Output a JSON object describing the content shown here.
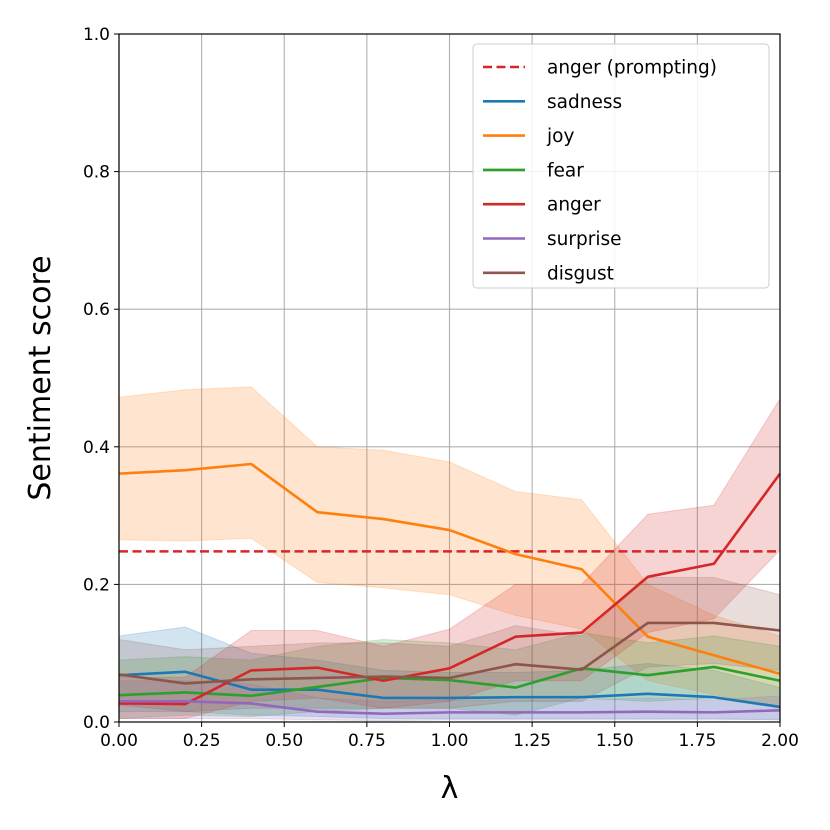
{
  "chart_data": {
    "type": "line",
    "title": "",
    "xlabel": "λ",
    "ylabel": "Sentiment score",
    "xlim": [
      0,
      2
    ],
    "ylim": [
      0,
      1
    ],
    "x_ticks": [
      "0.00",
      "0.25",
      "0.50",
      "0.75",
      "1.00",
      "1.25",
      "1.50",
      "1.75",
      "2.00"
    ],
    "y_ticks": [
      "0.0",
      "0.2",
      "0.4",
      "0.6",
      "0.8",
      "1.0"
    ],
    "grid": true,
    "legend_position": "top-right",
    "x": [
      0.0,
      0.2,
      0.4,
      0.6,
      0.8,
      1.0,
      1.2,
      1.4,
      1.6,
      1.8,
      2.0
    ],
    "reference_line": {
      "name": "anger (prompting)",
      "value": 0.248,
      "color": "#d62728",
      "style": "dashed"
    },
    "series": [
      {
        "name": "sadness",
        "color": "#1f77b4",
        "values": [
          0.068,
          0.073,
          0.047,
          0.047,
          0.035,
          0.035,
          0.036,
          0.036,
          0.041,
          0.036,
          0.022
        ],
        "lower": [
          0.015,
          0.015,
          0.01,
          0.008,
          0.005,
          0.005,
          0.005,
          0.005,
          0.005,
          0.005,
          0.003
        ],
        "upper": [
          0.125,
          0.138,
          0.1,
          0.09,
          0.075,
          0.072,
          0.072,
          0.075,
          0.085,
          0.075,
          0.05
        ]
      },
      {
        "name": "joy",
        "color": "#ff7f0e",
        "values": [
          0.361,
          0.366,
          0.375,
          0.305,
          0.295,
          0.279,
          0.244,
          0.222,
          0.124,
          0.097,
          0.07
        ],
        "lower": [
          0.265,
          0.263,
          0.267,
          0.203,
          0.195,
          0.185,
          0.155,
          0.135,
          0.06,
          0.04,
          0.02
        ],
        "upper": [
          0.472,
          0.483,
          0.487,
          0.4,
          0.395,
          0.378,
          0.335,
          0.323,
          0.2,
          0.155,
          0.125
        ]
      },
      {
        "name": "fear",
        "color": "#2ca02c",
        "values": [
          0.039,
          0.043,
          0.038,
          0.051,
          0.064,
          0.061,
          0.05,
          0.078,
          0.068,
          0.08,
          0.06
        ],
        "lower": [
          0.005,
          0.01,
          0.008,
          0.015,
          0.02,
          0.02,
          0.01,
          0.035,
          0.03,
          0.035,
          0.02
        ],
        "upper": [
          0.09,
          0.095,
          0.09,
          0.11,
          0.12,
          0.115,
          0.105,
          0.13,
          0.115,
          0.125,
          0.11
        ]
      },
      {
        "name": "anger",
        "color": "#d62728",
        "values": [
          0.027,
          0.026,
          0.075,
          0.079,
          0.06,
          0.078,
          0.124,
          0.13,
          0.211,
          0.23,
          0.361
        ],
        "lower": [
          0.005,
          0.005,
          0.03,
          0.035,
          0.02,
          0.03,
          0.06,
          0.06,
          0.13,
          0.15,
          0.25
        ],
        "upper": [
          0.065,
          0.065,
          0.133,
          0.133,
          0.11,
          0.135,
          0.2,
          0.2,
          0.302,
          0.315,
          0.47
        ]
      },
      {
        "name": "surprise",
        "color": "#9467bd",
        "values": [
          0.03,
          0.03,
          0.027,
          0.015,
          0.012,
          0.014,
          0.014,
          0.014,
          0.015,
          0.014,
          0.017
        ],
        "lower": [
          0.005,
          0.005,
          0.005,
          0.003,
          0.002,
          0.003,
          0.003,
          0.003,
          0.003,
          0.003,
          0.004
        ],
        "upper": [
          0.06,
          0.06,
          0.055,
          0.035,
          0.03,
          0.032,
          0.032,
          0.032,
          0.035,
          0.032,
          0.038
        ]
      },
      {
        "name": "disgust",
        "color": "#8c564b",
        "values": [
          0.069,
          0.056,
          0.062,
          0.064,
          0.066,
          0.064,
          0.084,
          0.076,
          0.144,
          0.144,
          0.133
        ],
        "lower": [
          0.025,
          0.015,
          0.02,
          0.02,
          0.02,
          0.02,
          0.03,
          0.03,
          0.08,
          0.085,
          0.075
        ],
        "upper": [
          0.12,
          0.105,
          0.11,
          0.115,
          0.115,
          0.11,
          0.14,
          0.125,
          0.21,
          0.21,
          0.185
        ]
      }
    ]
  }
}
